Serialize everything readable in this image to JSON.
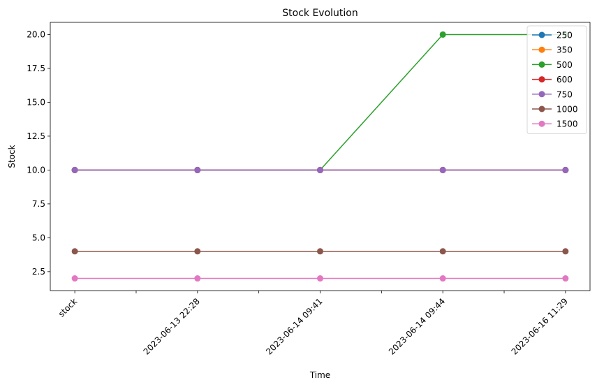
{
  "chart_data": {
    "type": "line",
    "title": "Stock Evolution",
    "xlabel": "Time",
    "ylabel": "Stock",
    "categories": [
      "stock",
      "2023-06-13 22:28",
      "2023-06-14 09:41",
      "2023-06-14 09:44",
      "2023-06-16 11:29"
    ],
    "ylim": [
      1.1,
      20.9
    ],
    "yticks": [
      2.5,
      5.0,
      7.5,
      10.0,
      12.5,
      15.0,
      17.5,
      20.0
    ],
    "yticks_labels": [
      "2.5",
      "5.0",
      "7.5",
      "10.0",
      "12.5",
      "15.0",
      "17.5",
      "20.0"
    ],
    "grid": false,
    "legend_position": "top-right",
    "series": [
      {
        "name": "250",
        "color": "#1f77b4",
        "values": [
          10,
          10,
          10,
          10,
          10
        ]
      },
      {
        "name": "350",
        "color": "#ff7f0e",
        "values": [
          10,
          10,
          10,
          10,
          10
        ]
      },
      {
        "name": "500",
        "color": "#2ca02c",
        "values": [
          10,
          10,
          10,
          20,
          20
        ]
      },
      {
        "name": "600",
        "color": "#d62728",
        "values": [
          10,
          10,
          10,
          10,
          10
        ]
      },
      {
        "name": "750",
        "color": "#9467bd",
        "values": [
          10,
          10,
          10,
          10,
          10
        ]
      },
      {
        "name": "1000",
        "color": "#8c564b",
        "values": [
          4,
          4,
          4,
          4,
          4
        ]
      },
      {
        "name": "1500",
        "color": "#e377c2",
        "values": [
          2,
          2,
          2,
          2,
          2
        ]
      }
    ]
  }
}
